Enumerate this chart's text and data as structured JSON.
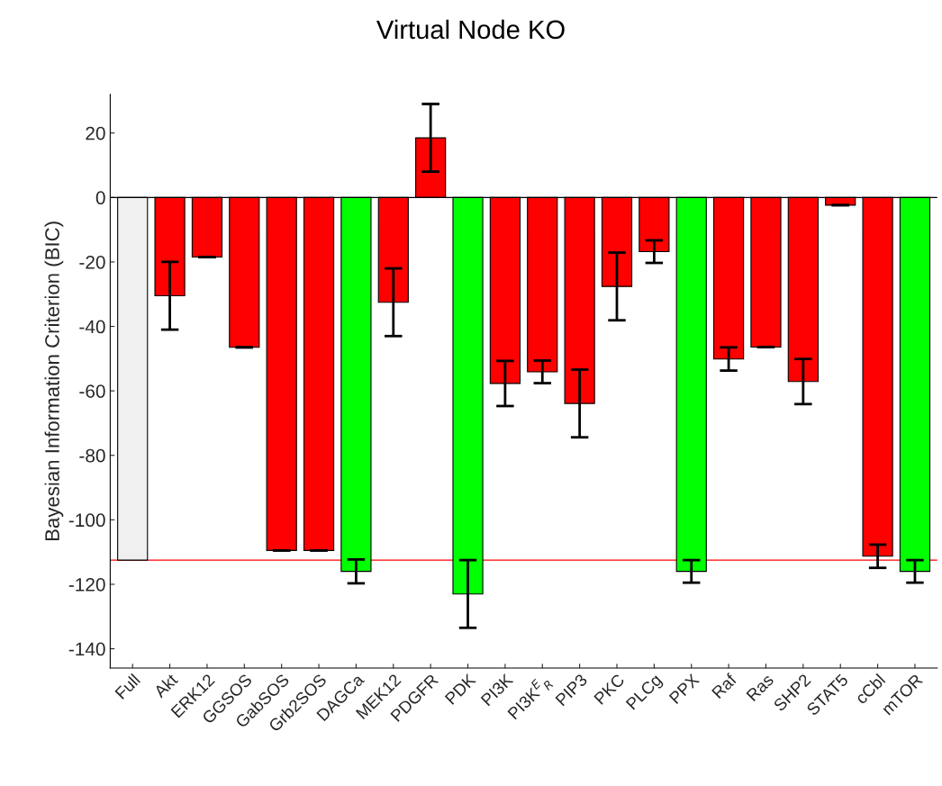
{
  "chart_data": {
    "type": "bar",
    "title": "Virtual Node KO",
    "ylabel": "Bayesian Information Criterion (BIC)",
    "categories": [
      "Full",
      "Akt",
      "ERK12",
      "GGSOS",
      "GabSOS",
      "Grb2SOS",
      "DAGCa",
      "MEK12",
      "PDGFR",
      "PDK",
      "PI3K",
      "PI3K$^{E}$$_{R}$",
      "PIP3",
      "PKC",
      "PLCg",
      "PPX",
      "Raf",
      "Ras",
      "SHP2",
      "STAT5",
      "cCbl",
      "mTOR"
    ],
    "values": [
      -112.5,
      -30.5,
      -18.5,
      -46.5,
      -109.5,
      -109.5,
      -116,
      -32.5,
      18.5,
      -123,
      -57.7,
      -54.1,
      -63.9,
      -27.6,
      -16.8,
      -116,
      -50.1,
      -46.4,
      -57.1,
      -2.4,
      -111.3,
      -116
    ],
    "errors": [
      null,
      10.5,
      0,
      0,
      0,
      0,
      3.7,
      10.5,
      10.5,
      10.5,
      7,
      3.5,
      10.5,
      10.5,
      3.5,
      3.5,
      3.6,
      0,
      7,
      0,
      3.6,
      3.5
    ],
    "colors": [
      "#f0f0f0",
      "#ff0000",
      "#ff0000",
      "#ff0000",
      "#ff0000",
      "#ff0000",
      "#00ff00",
      "#ff0000",
      "#ff0000",
      "#00ff00",
      "#ff0000",
      "#ff0000",
      "#ff0000",
      "#ff0000",
      "#ff0000",
      "#00ff00",
      "#ff0000",
      "#ff0000",
      "#ff0000",
      "#ff0000",
      "#ff0000",
      "#00ff00"
    ],
    "ylim": [
      -146,
      32
    ],
    "yticks": [
      -140,
      -120,
      -100,
      -80,
      -60,
      -40,
      -20,
      0,
      20
    ],
    "ref_lines": [
      {
        "axis": "y",
        "value": 0,
        "label": null,
        "color": "#000000"
      },
      {
        "axis": "y",
        "value": -112.5,
        "label": null,
        "color": "#ff0000"
      }
    ],
    "grid": false
  }
}
